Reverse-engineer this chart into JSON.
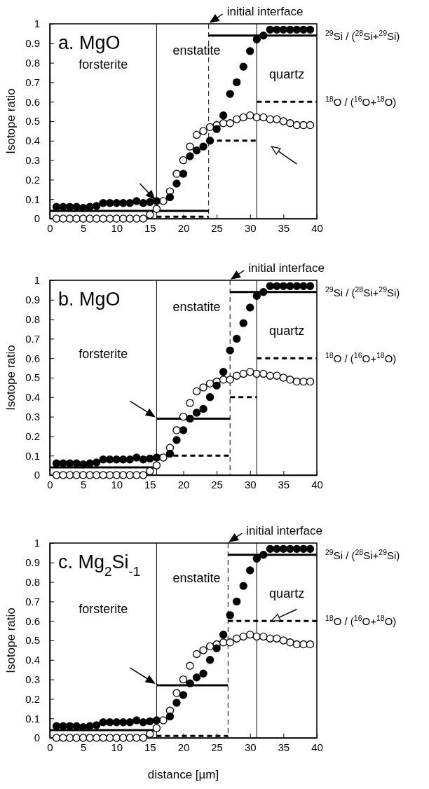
{
  "chart_data": [
    {
      "type": "scatter",
      "title": "a. MgO",
      "ylabel": "Isotope ratio",
      "xlim": [
        0,
        40
      ],
      "ylim": [
        0,
        1
      ],
      "xticks": [
        0,
        5,
        10,
        15,
        20,
        25,
        30,
        35,
        40
      ],
      "yticks": [
        0,
        0.1,
        0.2,
        0.3,
        0.4,
        0.5,
        0.6,
        0.7,
        0.8,
        0.9,
        1
      ],
      "grid": false,
      "x": [
        1,
        2,
        3,
        4,
        5,
        6,
        7,
        8,
        9,
        10,
        11,
        12,
        13,
        14,
        15,
        16,
        17,
        18,
        19,
        20,
        21,
        22,
        23,
        24,
        25,
        26,
        27,
        28,
        29,
        30,
        31,
        32,
        33,
        34,
        35,
        36,
        37,
        38,
        39
      ],
      "series": [
        {
          "type": "line",
          "color": "#000000",
          "line_style": "solid",
          "x": [
            0,
            23.8
          ],
          "values": [
            0.04,
            0.04
          ]
        },
        {
          "type": "line",
          "name": "$^{29}$Si / ($^{28}$Si+$^{29}$Si)",
          "color": "#000000",
          "line_style": "solid",
          "x": [
            23.8,
            40
          ],
          "values": [
            0.94,
            0.94
          ]
        },
        {
          "type": "line",
          "color": "#000000",
          "line_style": "dashed",
          "x": [
            16,
            23.8
          ],
          "values": [
            0.01,
            0.01
          ]
        },
        {
          "type": "line",
          "color": "#000000",
          "line_style": "dashed",
          "x": [
            23.8,
            31
          ],
          "values": [
            0.4,
            0.4
          ]
        },
        {
          "type": "line",
          "name": "$^{18}$O / ($^{16}$O+$^{18}$O)",
          "color": "#000000",
          "line_style": "dashed",
          "x": [
            31,
            40
          ],
          "values": [
            0.6,
            0.6
          ]
        },
        {
          "marker": "circle",
          "color": "#ffffff",
          "values": [
            0,
            0,
            0,
            0,
            0,
            0,
            0,
            0,
            0,
            0,
            0,
            0,
            0,
            0,
            0.02,
            0.05,
            0.09,
            0.14,
            0.23,
            0.3,
            0.37,
            0.43,
            0.45,
            0.47,
            0.48,
            0.49,
            0.49,
            0.51,
            0.52,
            0.53,
            0.52,
            0.52,
            0.51,
            0.51,
            0.5,
            0.49,
            0.48,
            0.48,
            0.48
          ]
        },
        {
          "marker": "circle",
          "color": "#000000",
          "values": [
            0.06,
            0.06,
            0.06,
            0.06,
            0.055,
            0.06,
            0.065,
            0.08,
            0.08,
            0.08,
            0.08,
            0.08,
            0.09,
            0.08,
            0.085,
            0.09,
            null,
            0.11,
            0.18,
            0.23,
            0.32,
            0.35,
            0.37,
            0.4,
            0.46,
            0.53,
            0.64,
            0.7,
            0.78,
            0.86,
            0.92,
            0.94,
            0.97,
            0.97,
            0.97,
            0.97,
            0.97,
            0.97,
            0.97
          ]
        }
      ],
      "ref_lines": [
        {
          "axis": "x",
          "value": 16,
          "line_style": "solid"
        },
        {
          "axis": "x",
          "value": 23.8,
          "line_style": "dashed"
        },
        {
          "axis": "x",
          "value": 31,
          "line_style": "solid"
        }
      ],
      "annotations": [
        "forsterite",
        "enstatite",
        "quartz",
        {
          "text": "initial interface",
          "x": 23.8,
          "y": 1
        }
      ]
    },
    {
      "type": "scatter",
      "title": "b. MgO",
      "ylabel": "Isotope ratio",
      "xlim": [
        0,
        40
      ],
      "ylim": [
        0,
        1
      ],
      "xticks": [
        0,
        5,
        10,
        15,
        20,
        25,
        30,
        35,
        40
      ],
      "yticks": [
        0,
        0.1,
        0.2,
        0.3,
        0.4,
        0.5,
        0.6,
        0.7,
        0.8,
        0.9,
        1
      ],
      "grid": false,
      "x": [
        1,
        2,
        3,
        4,
        5,
        6,
        7,
        8,
        9,
        10,
        11,
        12,
        13,
        14,
        15,
        16,
        17,
        18,
        19,
        20,
        21,
        22,
        23,
        24,
        25,
        26,
        27,
        28,
        29,
        30,
        31,
        32,
        33,
        34,
        35,
        36,
        37,
        38,
        39
      ],
      "series": [
        {
          "type": "line",
          "color": "#000000",
          "line_style": "solid",
          "x": [
            0,
            16
          ],
          "values": [
            0.04,
            0.04
          ]
        },
        {
          "type": "line",
          "color": "#000000",
          "line_style": "solid",
          "x": [
            16,
            27
          ],
          "values": [
            0.29,
            0.29
          ]
        },
        {
          "type": "line",
          "name": "$^{29}$Si / ($^{28}$Si+$^{29}$Si)",
          "color": "#000000",
          "line_style": "solid",
          "x": [
            27,
            40
          ],
          "values": [
            0.94,
            0.94
          ]
        },
        {
          "type": "line",
          "color": "#000000",
          "line_style": "dashed",
          "x": [
            16,
            27
          ],
          "values": [
            0.1,
            0.1
          ]
        },
        {
          "type": "line",
          "color": "#000000",
          "line_style": "dashed",
          "x": [
            27,
            31
          ],
          "values": [
            0.4,
            0.4
          ]
        },
        {
          "type": "line",
          "name": "$^{18}$O / ($^{16}$O+$^{18}$O)",
          "color": "#000000",
          "line_style": "dashed",
          "x": [
            31,
            40
          ],
          "values": [
            0.6,
            0.6
          ]
        },
        {
          "marker": "circle",
          "color": "#ffffff",
          "values": [
            0,
            0,
            0,
            0,
            0,
            0,
            0,
            0,
            0,
            0,
            0,
            0,
            0,
            0,
            0.02,
            0.05,
            0.09,
            0.14,
            0.23,
            0.3,
            0.37,
            0.43,
            0.45,
            0.47,
            0.48,
            0.49,
            0.49,
            0.51,
            0.52,
            0.53,
            0.52,
            0.52,
            0.51,
            0.51,
            0.5,
            0.49,
            0.48,
            0.48,
            0.48
          ]
        },
        {
          "marker": "circle",
          "color": "#000000",
          "values": [
            0.06,
            0.06,
            0.06,
            0.06,
            0.055,
            0.06,
            0.065,
            0.08,
            0.08,
            0.08,
            0.08,
            0.08,
            0.09,
            0.08,
            0.085,
            0.09,
            null,
            0.11,
            0.18,
            0.23,
            0.29,
            0.32,
            0.34,
            0.4,
            0.46,
            0.53,
            0.64,
            0.7,
            0.78,
            0.86,
            0.92,
            0.94,
            0.97,
            0.97,
            0.97,
            0.97,
            0.97,
            0.97,
            0.97
          ]
        }
      ],
      "ref_lines": [
        {
          "axis": "x",
          "value": 16,
          "line_style": "solid"
        },
        {
          "axis": "x",
          "value": 27,
          "line_style": "dashed"
        },
        {
          "axis": "x",
          "value": 31,
          "line_style": "solid"
        }
      ],
      "annotations": [
        "forsterite",
        "enstatite",
        "quartz",
        {
          "text": "initial interface",
          "x": 27,
          "y": 1
        }
      ]
    },
    {
      "type": "scatter",
      "title": "c.  Mg$_{2}$Si$_{-1}$",
      "xlabel": "distance [µm]",
      "ylabel": "Isotope ratio",
      "xlim": [
        0,
        40
      ],
      "ylim": [
        0,
        1
      ],
      "xticks": [
        0,
        5,
        10,
        15,
        20,
        25,
        30,
        35,
        40
      ],
      "yticks": [
        0,
        0.1,
        0.2,
        0.3,
        0.4,
        0.5,
        0.6,
        0.7,
        0.8,
        0.9,
        1
      ],
      "grid": false,
      "x": [
        1,
        2,
        3,
        4,
        5,
        6,
        7,
        8,
        9,
        10,
        11,
        12,
        13,
        14,
        15,
        16,
        17,
        18,
        19,
        20,
        21,
        22,
        23,
        24,
        25,
        26,
        27,
        28,
        29,
        30,
        31,
        32,
        33,
        34,
        35,
        36,
        37,
        38,
        39
      ],
      "series": [
        {
          "type": "line",
          "color": "#000000",
          "line_style": "solid",
          "x": [
            0,
            16
          ],
          "values": [
            0.04,
            0.04
          ]
        },
        {
          "type": "line",
          "color": "#000000",
          "line_style": "solid",
          "x": [
            16,
            26.7
          ],
          "values": [
            0.27,
            0.27
          ]
        },
        {
          "type": "line",
          "name": "$^{29}$Si / ($^{28}$Si+$^{29}$Si)",
          "color": "#000000",
          "line_style": "solid",
          "x": [
            26.7,
            40
          ],
          "values": [
            0.94,
            0.94
          ]
        },
        {
          "type": "line",
          "color": "#000000",
          "line_style": "dashed",
          "x": [
            16,
            26.7
          ],
          "values": [
            0.01,
            0.01
          ]
        },
        {
          "type": "line",
          "name": "$^{18}$O / ($^{16}$O+$^{18}$O)",
          "color": "#000000",
          "line_style": "dashed",
          "x": [
            26.7,
            40
          ],
          "values": [
            0.6,
            0.6
          ]
        },
        {
          "marker": "circle",
          "color": "#ffffff",
          "values": [
            0,
            0,
            0,
            0,
            0,
            0,
            0,
            0,
            0,
            0,
            0,
            0,
            0,
            0,
            0.02,
            0.05,
            0.09,
            0.14,
            0.23,
            0.3,
            0.37,
            0.43,
            0.45,
            0.47,
            0.48,
            0.49,
            0.49,
            0.51,
            0.52,
            0.53,
            0.52,
            0.52,
            0.51,
            0.51,
            0.5,
            0.49,
            0.48,
            0.48,
            0.48
          ]
        },
        {
          "marker": "circle",
          "color": "#000000",
          "values": [
            0.06,
            0.06,
            0.06,
            0.06,
            0.055,
            0.06,
            0.065,
            0.08,
            0.08,
            0.08,
            0.08,
            0.08,
            0.09,
            0.08,
            0.085,
            0.09,
            null,
            0.11,
            0.18,
            0.22,
            0.28,
            0.31,
            0.33,
            0.4,
            0.46,
            0.53,
            0.63,
            0.7,
            0.78,
            0.86,
            0.92,
            0.94,
            0.97,
            0.97,
            0.97,
            0.97,
            0.97,
            0.97,
            0.97
          ]
        }
      ],
      "ref_lines": [
        {
          "axis": "x",
          "value": 16,
          "line_style": "solid"
        },
        {
          "axis": "x",
          "value": 26.7,
          "line_style": "dashed"
        },
        {
          "axis": "x",
          "value": 31,
          "line_style": "solid"
        }
      ],
      "annotations": [
        "forsterite",
        "enstatite",
        "quartz",
        {
          "text": "initial interface",
          "x": 26.7,
          "y": 1
        }
      ]
    }
  ]
}
